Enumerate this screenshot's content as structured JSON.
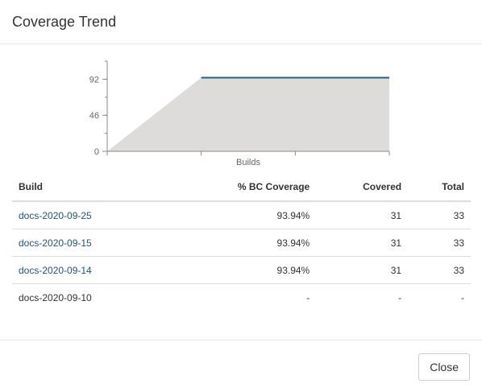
{
  "dialog": {
    "title": "Coverage Trend",
    "close_label": "Close"
  },
  "chart_data": {
    "type": "area",
    "title": "",
    "xlabel": "Builds",
    "ylabel": "",
    "y_ticks": [
      0,
      46,
      92
    ],
    "ylim": [
      0,
      115
    ],
    "x": [
      0,
      1,
      2,
      3
    ],
    "values": [
      0,
      93.94,
      93.94,
      93.94
    ],
    "colors": {
      "fill": "#dddcdb",
      "line": "#1f5f8b",
      "axis": "#888888"
    }
  },
  "table": {
    "headers": {
      "build": "Build",
      "coverage": "% BC Coverage",
      "covered": "Covered",
      "total": "Total"
    },
    "rows": [
      {
        "build": "docs-2020-09-25",
        "coverage": "93.94%",
        "covered": "31",
        "total": "33",
        "link": true
      },
      {
        "build": "docs-2020-09-15",
        "coverage": "93.94%",
        "covered": "31",
        "total": "33",
        "link": true
      },
      {
        "build": "docs-2020-09-14",
        "coverage": "93.94%",
        "covered": "31",
        "total": "33",
        "link": true
      },
      {
        "build": "docs-2020-09-10",
        "coverage": "-",
        "covered": "-",
        "total": "-",
        "link": false
      }
    ]
  }
}
